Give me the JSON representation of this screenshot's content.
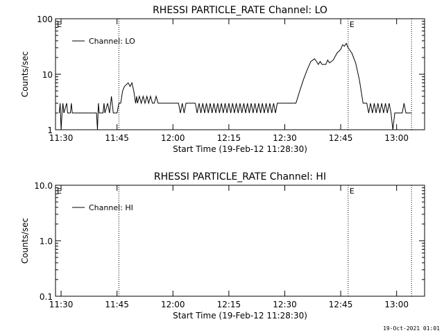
{
  "footer": {
    "timestamp": "19-Oct-2021 01:01"
  },
  "chart_data": [
    {
      "type": "line",
      "title": "RHESSI PARTICLE_RATE Channel: LO",
      "xlabel": "Start Time (19-Feb-12 11:28:30)",
      "ylabel": "Counts/sec",
      "yscale": "log",
      "ylim": [
        1,
        100
      ],
      "xlim_minutes_after_start": [
        0,
        99
      ],
      "xticks": [
        "11:30",
        "11:45",
        "12:00",
        "12:15",
        "12:30",
        "12:45",
        "13:00"
      ],
      "yticks": [
        "1",
        "10",
        "100"
      ],
      "legend": {
        "placement": "top-left",
        "entries": [
          "Channel: LO"
        ]
      },
      "event_lines": [
        "11:45:30",
        "12:47:00",
        "13:04:00"
      ],
      "event_labels": [
        {
          "text": "E",
          "at": "11:28:30"
        },
        {
          "text": "E",
          "at": "12:47:00"
        }
      ],
      "series": [
        {
          "name": "Channel: LO",
          "points": [
            [
              "11:29:30",
              2
            ],
            [
              "11:29:45",
              3
            ],
            [
              "11:30:00",
              1
            ],
            [
              "11:30:15",
              2
            ],
            [
              "11:30:30",
              3
            ],
            [
              "11:30:45",
              2
            ],
            [
              "11:31:30",
              3
            ],
            [
              "11:31:45",
              2
            ],
            [
              "11:32:30",
              2
            ],
            [
              "11:32:45",
              3
            ],
            [
              "11:33:00",
              2
            ],
            [
              "11:38:30",
              2
            ],
            [
              "11:39:30",
              2
            ],
            [
              "11:39:45",
              1
            ],
            [
              "11:40:00",
              3
            ],
            [
              "11:40:15",
              2
            ],
            [
              "11:41:15",
              2
            ],
            [
              "11:41:30",
              3
            ],
            [
              "11:41:45",
              2
            ],
            [
              "11:42:30",
              3
            ],
            [
              "11:43:00",
              2
            ],
            [
              "11:43:30",
              4
            ],
            [
              "11:44:00",
              2
            ],
            [
              "11:45:00",
              2
            ],
            [
              "11:45:30",
              3
            ],
            [
              "11:46:00",
              3
            ],
            [
              "11:46:30",
              5
            ],
            [
              "11:47:00",
              6
            ],
            [
              "11:48:00",
              7
            ],
            [
              "11:48:30",
              6
            ],
            [
              "11:49:00",
              7
            ],
            [
              "11:49:30",
              5
            ],
            [
              "11:50:00",
              3
            ],
            [
              "11:50:15",
              4
            ],
            [
              "11:50:30",
              3
            ],
            [
              "11:51:00",
              4
            ],
            [
              "11:51:30",
              3
            ],
            [
              "11:52:00",
              4
            ],
            [
              "11:52:30",
              3
            ],
            [
              "11:53:00",
              4
            ],
            [
              "11:53:30",
              3
            ],
            [
              "11:54:00",
              4
            ],
            [
              "11:54:30",
              3
            ],
            [
              "11:55:00",
              3
            ],
            [
              "11:55:30",
              4
            ],
            [
              "11:56:00",
              3
            ],
            [
              "12:01:30",
              3
            ],
            [
              "12:02:00",
              2
            ],
            [
              "12:02:30",
              3
            ],
            [
              "12:03:00",
              2
            ],
            [
              "12:03:30",
              3
            ],
            [
              "12:06:00",
              3
            ],
            [
              "12:06:30",
              2
            ],
            [
              "12:07:00",
              3
            ],
            [
              "12:07:30",
              2
            ],
            [
              "12:08:00",
              3
            ],
            [
              "12:08:30",
              2
            ],
            [
              "12:09:00",
              3
            ],
            [
              "12:09:30",
              2
            ],
            [
              "12:10:00",
              3
            ],
            [
              "12:10:30",
              2
            ],
            [
              "12:11:00",
              3
            ],
            [
              "12:11:30",
              2
            ],
            [
              "12:12:00",
              3
            ],
            [
              "12:12:30",
              2
            ],
            [
              "12:13:00",
              3
            ],
            [
              "12:13:30",
              2
            ],
            [
              "12:14:00",
              3
            ],
            [
              "12:14:30",
              2
            ],
            [
              "12:15:00",
              3
            ],
            [
              "12:15:30",
              2
            ],
            [
              "12:16:00",
              3
            ],
            [
              "12:16:30",
              2
            ],
            [
              "12:17:00",
              3
            ],
            [
              "12:17:30",
              2
            ],
            [
              "12:18:00",
              3
            ],
            [
              "12:18:30",
              2
            ],
            [
              "12:19:00",
              3
            ],
            [
              "12:19:30",
              2
            ],
            [
              "12:20:00",
              3
            ],
            [
              "12:20:30",
              2
            ],
            [
              "12:21:00",
              3
            ],
            [
              "12:21:30",
              2
            ],
            [
              "12:22:00",
              3
            ],
            [
              "12:22:30",
              2
            ],
            [
              "12:23:00",
              3
            ],
            [
              "12:23:30",
              2
            ],
            [
              "12:24:00",
              3
            ],
            [
              "12:24:30",
              2
            ],
            [
              "12:25:00",
              3
            ],
            [
              "12:25:30",
              2
            ],
            [
              "12:26:00",
              3
            ],
            [
              "12:26:30",
              2
            ],
            [
              "12:27:00",
              3
            ],
            [
              "12:27:30",
              2
            ],
            [
              "12:28:00",
              3
            ],
            [
              "12:32:00",
              3
            ],
            [
              "12:33:00",
              3
            ],
            [
              "12:34:00",
              5
            ],
            [
              "12:35:00",
              8
            ],
            [
              "12:36:00",
              12
            ],
            [
              "12:37:00",
              17
            ],
            [
              "12:38:00",
              19
            ],
            [
              "12:38:30",
              17
            ],
            [
              "12:39:00",
              15
            ],
            [
              "12:39:30",
              17
            ],
            [
              "12:40:00",
              15
            ],
            [
              "12:41:00",
              15
            ],
            [
              "12:41:30",
              18
            ],
            [
              "12:42:00",
              16
            ],
            [
              "12:43:00",
              18
            ],
            [
              "12:44:00",
              24
            ],
            [
              "12:45:00",
              28
            ],
            [
              "12:45:30",
              34
            ],
            [
              "12:46:00",
              32
            ],
            [
              "12:46:30",
              36
            ],
            [
              "12:47:00",
              30
            ],
            [
              "12:48:00",
              24
            ],
            [
              "12:49:00",
              16
            ],
            [
              "12:50:00",
              8
            ],
            [
              "12:51:00",
              3
            ],
            [
              "12:52:00",
              3
            ],
            [
              "12:52:30",
              2
            ],
            [
              "12:53:00",
              3
            ],
            [
              "12:53:30",
              2
            ],
            [
              "12:54:00",
              3
            ],
            [
              "12:54:30",
              2
            ],
            [
              "12:55:00",
              3
            ],
            [
              "12:55:30",
              2
            ],
            [
              "12:56:00",
              3
            ],
            [
              "12:56:30",
              2
            ],
            [
              "12:57:00",
              3
            ],
            [
              "12:57:30",
              2
            ],
            [
              "12:58:00",
              3
            ],
            [
              "12:58:30",
              2
            ],
            [
              "12:59:00",
              1
            ],
            [
              "12:59:30",
              2
            ],
            [
              "13:01:30",
              2
            ],
            [
              "13:02:00",
              3
            ],
            [
              "13:02:30",
              2
            ],
            [
              "13:04:00",
              2
            ]
          ]
        }
      ]
    },
    {
      "type": "line",
      "title": "RHESSI PARTICLE_RATE Channel: HI",
      "xlabel": "Start Time (19-Feb-12 11:28:30)",
      "ylabel": "Counts/sec",
      "yscale": "log",
      "ylim": [
        0.1,
        10
      ],
      "xlim_minutes_after_start": [
        0,
        99
      ],
      "xticks": [
        "11:30",
        "11:45",
        "12:00",
        "12:15",
        "12:30",
        "12:45",
        "13:00"
      ],
      "yticks": [
        "0.1",
        "1.0",
        "10.0"
      ],
      "legend": {
        "placement": "top-left",
        "entries": [
          "Channel: HI"
        ]
      },
      "event_lines": [
        "11:45:30",
        "12:47:00",
        "13:04:00"
      ],
      "event_labels": [
        {
          "text": "E",
          "at": "11:28:30"
        },
        {
          "text": "E",
          "at": "12:47:00"
        }
      ],
      "series": [
        {
          "name": "Channel: HI",
          "points": []
        }
      ]
    }
  ]
}
